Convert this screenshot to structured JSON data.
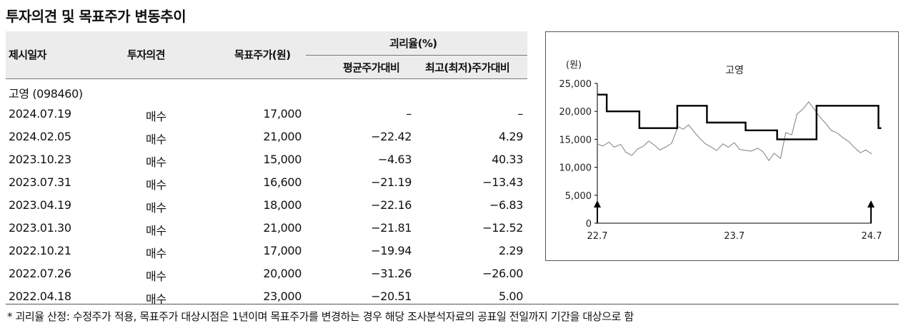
{
  "title": "투자의견 및 목표주가 변동추이",
  "table": {
    "headers": {
      "date": "제시일자",
      "opinion": "투자의견",
      "target_price": "목표주가(원)",
      "disparity": "괴리율(%)",
      "avg": "평균주가대비",
      "max": "최고(최저)주가대비"
    },
    "company": "고영 (098460)",
    "rows": [
      {
        "date": "2024.07.19",
        "opinion": "매수",
        "target_price": "17,000",
        "avg": "–",
        "max": "–"
      },
      {
        "date": "2024.02.05",
        "opinion": "매수",
        "target_price": "21,000",
        "avg": "−22.42",
        "max": "4.29"
      },
      {
        "date": "2023.10.23",
        "opinion": "매수",
        "target_price": "15,000",
        "avg": "−4.63",
        "max": "40.33"
      },
      {
        "date": "2023.07.31",
        "opinion": "매수",
        "target_price": "16,600",
        "avg": "−21.19",
        "max": "−13.43"
      },
      {
        "date": "2023.04.19",
        "opinion": "매수",
        "target_price": "18,000",
        "avg": "−22.16",
        "max": "−6.83"
      },
      {
        "date": "2023.01.30",
        "opinion": "매수",
        "target_price": "21,000",
        "avg": "−21.81",
        "max": "−12.52"
      },
      {
        "date": "2022.10.21",
        "opinion": "매수",
        "target_price": "17,000",
        "avg": "−19.94",
        "max": "2.29"
      },
      {
        "date": "2022.07.26",
        "opinion": "매수",
        "target_price": "20,000",
        "avg": "−31.26",
        "max": "−26.00"
      },
      {
        "date": "2022.04.18",
        "opinion": "매수",
        "target_price": "23,000",
        "avg": "−20.51",
        "max": "5.00"
      }
    ]
  },
  "footnote": "* 괴리율 산정: 수정주가 적용, 목표주가 대상시점은 1년이며 목표주가를 변경하는 경우 해당 조사분석자료의 공표일 전일까지 기간을 대상으로 함",
  "chart_data": {
    "type": "line",
    "title": "고영",
    "ylabel": "(원)",
    "ylim": [
      0,
      25000
    ],
    "yticks": [
      "0",
      "5,000",
      "10,000",
      "15,000",
      "20,000",
      "25,000"
    ],
    "xticks": [
      "22.7",
      "23.7",
      "24.7"
    ],
    "xlim": [
      "2022-07",
      "2024-07"
    ],
    "series": [
      {
        "type": "step",
        "color": "#000000",
        "points": [
          [
            "2022-07-01",
            23000
          ],
          [
            "2022-07-26",
            20000
          ],
          [
            "2022-10-21",
            17000
          ],
          [
            "2023-01-30",
            21000
          ],
          [
            "2023-04-19",
            18000
          ],
          [
            "2023-07-31",
            16600
          ],
          [
            "2023-10-23",
            15000
          ],
          [
            "2024-02-05",
            21000
          ],
          [
            "2024-07-19",
            17000
          ]
        ]
      },
      {
        "type": "line",
        "color": "#8a8a8a",
        "points": [
          [
            "2022-07-01",
            14200
          ],
          [
            "2022-07-15",
            13800
          ],
          [
            "2022-08-01",
            14500
          ],
          [
            "2022-08-15",
            13600
          ],
          [
            "2022-09-01",
            14100
          ],
          [
            "2022-09-15",
            12700
          ],
          [
            "2022-10-01",
            12100
          ],
          [
            "2022-10-15",
            13200
          ],
          [
            "2022-11-01",
            13800
          ],
          [
            "2022-11-15",
            14700
          ],
          [
            "2022-12-01",
            13900
          ],
          [
            "2022-12-15",
            13100
          ],
          [
            "2023-01-01",
            13700
          ],
          [
            "2023-01-15",
            14300
          ],
          [
            "2023-02-01",
            17300
          ],
          [
            "2023-02-15",
            16800
          ],
          [
            "2023-03-01",
            17600
          ],
          [
            "2023-03-15",
            16400
          ],
          [
            "2023-04-01",
            15100
          ],
          [
            "2023-04-15",
            14200
          ],
          [
            "2023-05-01",
            13600
          ],
          [
            "2023-05-15",
            13000
          ],
          [
            "2023-06-01",
            14200
          ],
          [
            "2023-06-15",
            13600
          ],
          [
            "2023-07-01",
            14400
          ],
          [
            "2023-07-15",
            13200
          ],
          [
            "2023-08-01",
            13000
          ],
          [
            "2023-08-15",
            12900
          ],
          [
            "2023-09-01",
            13400
          ],
          [
            "2023-09-15",
            12800
          ],
          [
            "2023-10-01",
            11200
          ],
          [
            "2023-10-15",
            12500
          ],
          [
            "2023-11-01",
            11600
          ],
          [
            "2023-11-15",
            16200
          ],
          [
            "2023-12-01",
            15800
          ],
          [
            "2023-12-15",
            19500
          ],
          [
            "2024-01-01",
            20500
          ],
          [
            "2024-01-15",
            21700
          ],
          [
            "2024-02-01",
            20200
          ],
          [
            "2024-02-15",
            18900
          ],
          [
            "2024-03-01",
            17800
          ],
          [
            "2024-03-15",
            16600
          ],
          [
            "2024-04-01",
            16100
          ],
          [
            "2024-04-15",
            15300
          ],
          [
            "2024-05-01",
            14600
          ],
          [
            "2024-05-15",
            13600
          ],
          [
            "2024-06-01",
            12600
          ],
          [
            "2024-06-15",
            13100
          ],
          [
            "2024-07-01",
            12400
          ]
        ]
      }
    ],
    "grid": false
  }
}
